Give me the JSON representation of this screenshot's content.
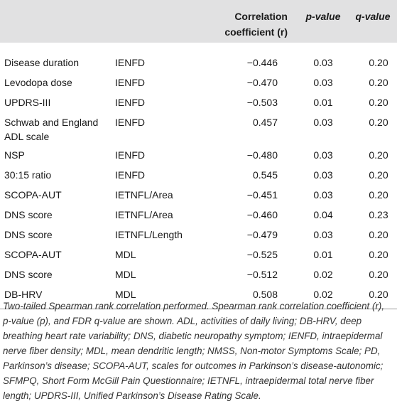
{
  "table": {
    "headers": {
      "variable": "",
      "measure": "",
      "correlation": "Correlation coefficient (r)",
      "p_value": "p-value",
      "q_value": "q-value"
    },
    "rows": [
      {
        "variable": "Disease duration",
        "measure": "IENFD",
        "r": "−0.446",
        "p": "0.03",
        "q": "0.20"
      },
      {
        "variable": "Levodopa dose",
        "measure": "IENFD",
        "r": "−0.470",
        "p": "0.03",
        "q": "0.20"
      },
      {
        "variable": "UPDRS-III",
        "measure": "IENFD",
        "r": "−0.503",
        "p": "0.01",
        "q": "0.20"
      },
      {
        "variable": "Schwab and England ADL scale",
        "measure": "IENFD",
        "r": "0.457",
        "p": "0.03",
        "q": "0.20"
      },
      {
        "variable": "NSP",
        "measure": "IENFD",
        "r": "−0.480",
        "p": "0.03",
        "q": "0.20"
      },
      {
        "variable": "30:15 ratio",
        "measure": "IENFD",
        "r": "0.545",
        "p": "0.03",
        "q": "0.20"
      },
      {
        "variable": "SCOPA-AUT",
        "measure": "IETNFL/Area",
        "r": "−0.451",
        "p": "0.03",
        "q": "0.20"
      },
      {
        "variable": "DNS score",
        "measure": "IETNFL/Area",
        "r": "−0.460",
        "p": "0.04",
        "q": "0.23"
      },
      {
        "variable": "DNS score",
        "measure": "IETNFL/Length",
        "r": "−0.479",
        "p": "0.03",
        "q": "0.20"
      },
      {
        "variable": "SCOPA-AUT",
        "measure": "MDL",
        "r": "−0.525",
        "p": "0.01",
        "q": "0.20"
      },
      {
        "variable": "DNS score",
        "measure": "MDL",
        "r": "−0.512",
        "p": "0.02",
        "q": "0.20"
      },
      {
        "variable": "DB-HRV",
        "measure": "MDL",
        "r": "0.508",
        "p": "0.02",
        "q": "0.20"
      }
    ]
  },
  "footnote": "Two-tailed Spearman rank correlation performed. Spearman rank correlation coefficient (r), p-value (p), and FDR q-value are shown. ADL, activities of daily living; DB-HRV, deep breathing heart rate variability; DNS, diabetic neuropathy symptom; IENFD, intraepidermal nerve fiber density; MDL, mean dendritic length; NMSS, Non-motor Symptoms Scale; PD, Parkinson’s disease; SCOPA-AUT, scales for outcomes in Parkinson’s disease-autonomic; SFMPQ, Short Form McGill Pain Questionnaire; IETNFL, intraepidermal total nerve fiber length; UPDRS-III, Unified Parkinson’s Disease Rating Scale."
}
